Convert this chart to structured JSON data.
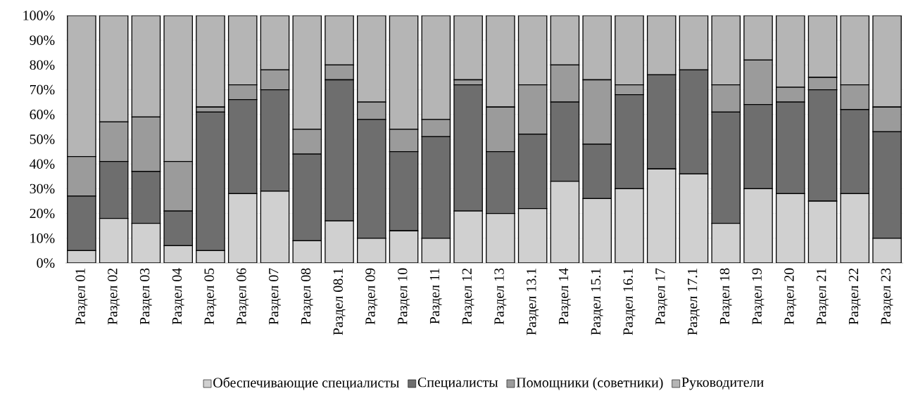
{
  "chart_data": {
    "type": "bar",
    "stacked": true,
    "categories": [
      "Раздел 01",
      "Раздел 02",
      "Раздел 03",
      "Раздел 04",
      "Раздел 05",
      "Раздел 06",
      "Раздел 07",
      "Раздел 08",
      "Раздел 08.1",
      "Раздел 09",
      "Раздел 10",
      "Раздел 11",
      "Раздел 12",
      "Раздел 13",
      "Раздел 13.1",
      "Раздел 14",
      "Раздел 15.1",
      "Раздел 16.1",
      "Раздел 17",
      "Раздел 17.1",
      "Раздел 18",
      "Раздел 19",
      "Раздел 20",
      "Раздел 21",
      "Раздел 22",
      "Раздел 23"
    ],
    "series": [
      {
        "name": "Обеспечивающие специалисты",
        "color": "#d0d0d0",
        "values": [
          5,
          18,
          16,
          7,
          5,
          28,
          29,
          9,
          17,
          10,
          13,
          10,
          21,
          20,
          22,
          33,
          26,
          30,
          38,
          36,
          16,
          30,
          28,
          25,
          28,
          10
        ]
      },
      {
        "name": "Специалисты",
        "color": "#6e6e6e",
        "values": [
          22,
          23,
          21,
          14,
          56,
          38,
          41,
          35,
          57,
          48,
          32,
          41,
          51,
          25,
          30,
          32,
          22,
          38,
          38,
          42,
          45,
          34,
          37,
          45,
          34,
          43
        ]
      },
      {
        "name": "Помощники (советники)",
        "color": "#9b9b9b",
        "values": [
          16,
          16,
          22,
          20,
          2,
          6,
          8,
          10,
          6,
          7,
          9,
          7,
          2,
          18,
          20,
          15,
          26,
          4,
          0,
          0,
          11,
          18,
          6,
          5,
          10,
          10
        ]
      },
      {
        "name": "Руководители",
        "color": "#b5b5b5",
        "values": [
          57,
          43,
          41,
          59,
          37,
          28,
          22,
          46,
          20,
          35,
          46,
          42,
          26,
          37,
          28,
          20,
          26,
          28,
          24,
          22,
          28,
          18,
          29,
          25,
          28,
          37
        ]
      }
    ],
    "ylim": [
      0,
      100
    ],
    "yticks": [
      {
        "value": 0,
        "label": "0%"
      },
      {
        "value": 10,
        "label": "10%"
      },
      {
        "value": 20,
        "label": "20%"
      },
      {
        "value": 30,
        "label": "30%"
      },
      {
        "value": 40,
        "label": "40%"
      },
      {
        "value": 50,
        "label": "50%"
      },
      {
        "value": 60,
        "label": "60%"
      },
      {
        "value": 70,
        "label": "70%"
      },
      {
        "value": 80,
        "label": "80%"
      },
      {
        "value": 90,
        "label": "90%"
      },
      {
        "value": 100,
        "label": "100%"
      }
    ],
    "grid": "y",
    "legend": "bottom"
  }
}
